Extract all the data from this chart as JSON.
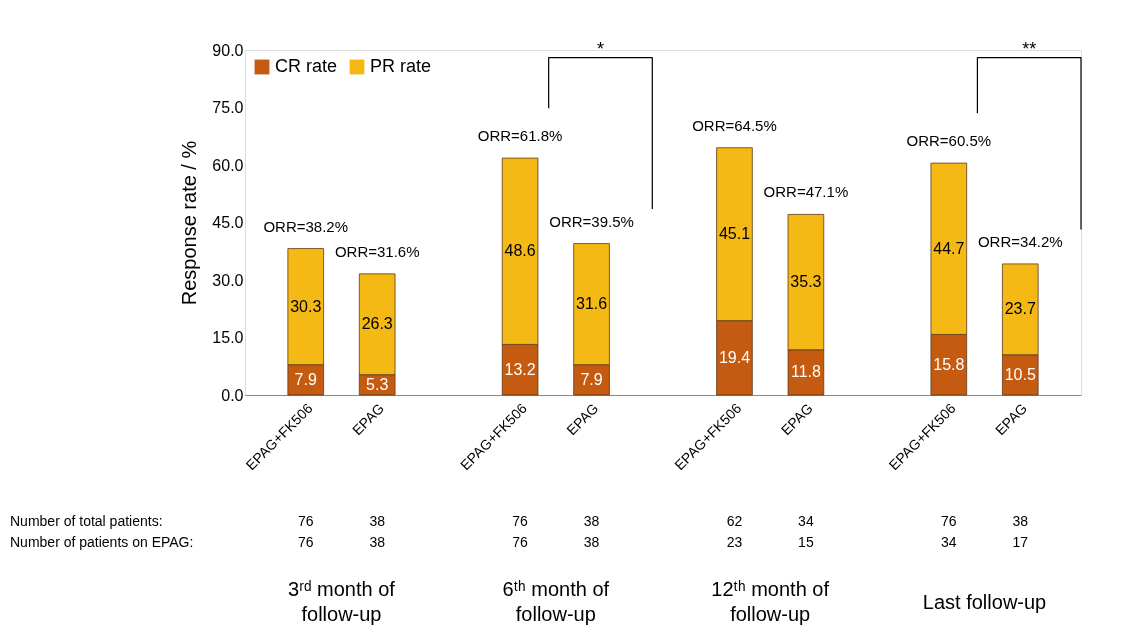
{
  "chart_data": {
    "type": "bar",
    "stacked": true,
    "ylabel": "Response rate / %",
    "categories": [
      "EPAG+FK506",
      "EPAG",
      null,
      "EPAG+FK506",
      "EPAG",
      null,
      "EPAG+FK506",
      "EPAG",
      null,
      "EPAG+FK506",
      "EPAG"
    ],
    "series": [
      {
        "name": "CR rate",
        "color": "#c55a11",
        "values": [
          7.9,
          5.3,
          null,
          13.2,
          7.9,
          null,
          19.4,
          11.8,
          null,
          15.8,
          10.5
        ]
      },
      {
        "name": "PR rate",
        "color": "#f5b915",
        "values": [
          30.3,
          26.3,
          null,
          48.6,
          31.6,
          null,
          45.1,
          35.3,
          null,
          44.7,
          23.7
        ]
      }
    ],
    "totals": [
      "ORR=38.2%",
      "ORR=31.6%",
      null,
      "ORR=61.8%",
      "ORR=39.5%",
      null,
      "ORR=64.5%",
      "ORR=47.1%",
      null,
      "ORR=60.5%",
      "ORR=34.2%"
    ],
    "data_labels": true,
    "ylim": [
      0,
      90
    ],
    "yticks": [
      {
        "value": 0,
        "label": "0.0"
      },
      {
        "value": 15,
        "label": "15.0"
      },
      {
        "value": 30,
        "label": "30.0"
      },
      {
        "value": 45,
        "label": "45.0"
      },
      {
        "value": 60,
        "label": "60.0"
      },
      {
        "value": 75,
        "label": "75.0"
      },
      {
        "value": 90,
        "label": "90.0"
      }
    ],
    "grid": false,
    "legend": "top left",
    "annotations": [
      "*",
      "**",
      "Number of total patients:",
      "Number of patients on EPAG:",
      "76",
      "38",
      "76",
      "38",
      "62",
      "34",
      "76",
      "38",
      "76",
      "38",
      "76",
      "38",
      "23",
      "15",
      "34",
      "17",
      "3ʳᵈ month of follow-up",
      "6ᵗʰ month of follow-up",
      "12ᵗʰ month of follow-up",
      "Last follow-up"
    ]
  }
}
